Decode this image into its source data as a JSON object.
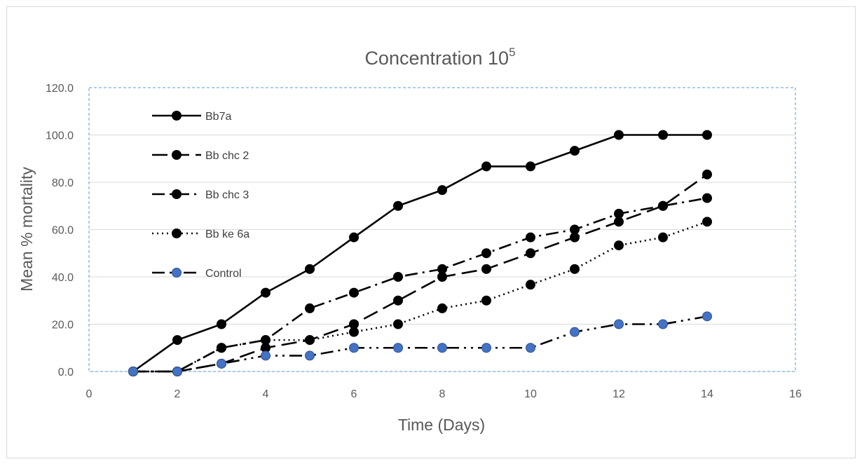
{
  "chart_data": {
    "type": "line",
    "title": "Concentration 10",
    "title_superscript": "5",
    "xlabel": "Time (Days)",
    "ylabel": "Mean % mortality",
    "xlim": [
      0,
      16
    ],
    "ylim": [
      0,
      120
    ],
    "xticks": [
      "0",
      "2",
      "4",
      "6",
      "8",
      "10",
      "12",
      "14",
      "16"
    ],
    "yticks": [
      "0.0",
      "20.0",
      "40.0",
      "60.0",
      "80.0",
      "100.0",
      "120.0"
    ],
    "grid": "horizontal",
    "legend_position": "top-left",
    "x": [
      1,
      2,
      3,
      4,
      5,
      6,
      7,
      8,
      9,
      10,
      11,
      12,
      13,
      14
    ],
    "series": [
      {
        "name": "Bb7a",
        "style": "solid",
        "marker_color": "#000000",
        "values": [
          0,
          13.3,
          20.0,
          33.3,
          43.3,
          56.7,
          70.0,
          76.7,
          86.7,
          86.7,
          93.3,
          100.0,
          100.0,
          100.0
        ]
      },
      {
        "name": "Bb chc 2",
        "style": "longdash",
        "marker_color": "#000000",
        "values": [
          0,
          0,
          3.3,
          10.0,
          13.3,
          20.0,
          30.0,
          40.0,
          43.3,
          50.0,
          56.7,
          63.3,
          70.0,
          83.3
        ]
      },
      {
        "name": "Bb chc 3",
        "style": "dashdot",
        "marker_color": "#000000",
        "values": [
          0,
          0,
          10.0,
          13.3,
          26.7,
          33.3,
          40.0,
          43.3,
          50.0,
          56.7,
          60.0,
          66.7,
          70.0,
          73.3
        ]
      },
      {
        "name": "Bb ke 6a",
        "style": "dotted",
        "marker_color": "#000000",
        "values": [
          0,
          0,
          10.0,
          13.3,
          13.3,
          16.7,
          20.0,
          26.7,
          30.0,
          36.7,
          43.3,
          53.3,
          56.7,
          63.3
        ]
      },
      {
        "name": "Control",
        "style": "dashdotdot",
        "marker_color": "#4472c4",
        "values": [
          0,
          0,
          3.3,
          6.7,
          6.7,
          10.0,
          10.0,
          10.0,
          10.0,
          10.0,
          16.7,
          20.0,
          20.0,
          23.3
        ]
      }
    ]
  }
}
